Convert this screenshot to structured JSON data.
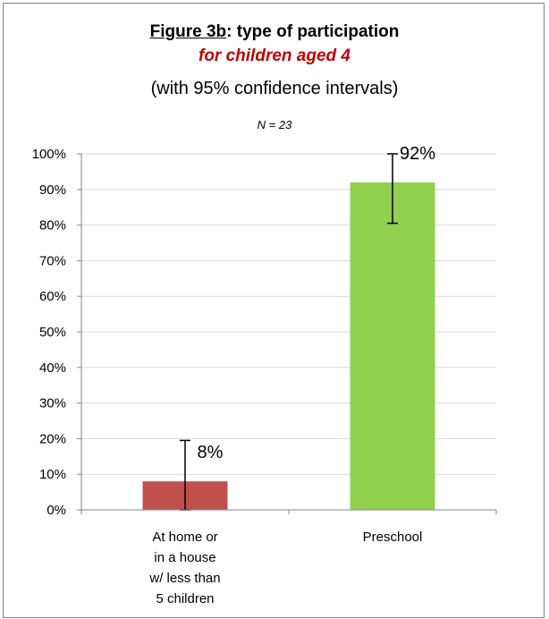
{
  "title": {
    "figure_label": "Figure 3b",
    "title_rest": ": type of participation",
    "subtitle": "for children aged 4",
    "ci_note": "(with 95% confidence intervals)",
    "n_label": "N = 23"
  },
  "colors": {
    "bar_home": "#c0504d",
    "bar_preschool": "#92d050",
    "title_subtitle": "#c00000"
  },
  "chart_data": {
    "type": "bar",
    "categories": [
      [
        "At home or",
        "in a house",
        "w/ less than",
        "5 children"
      ],
      [
        "Preschool"
      ]
    ],
    "values": [
      8,
      92
    ],
    "data_labels": [
      "8%",
      "92%"
    ],
    "error_bars": [
      {
        "low": 0,
        "high": 19.5
      },
      {
        "low": 80.5,
        "high": 100
      }
    ],
    "ylim": [
      0,
      100
    ],
    "yticks": [
      0,
      10,
      20,
      30,
      40,
      50,
      60,
      70,
      80,
      90,
      100
    ],
    "ytick_labels": [
      "0%",
      "10%",
      "20%",
      "30%",
      "40%",
      "50%",
      "60%",
      "70%",
      "80%",
      "90%",
      "100%"
    ],
    "grid": true,
    "legend": "none"
  }
}
